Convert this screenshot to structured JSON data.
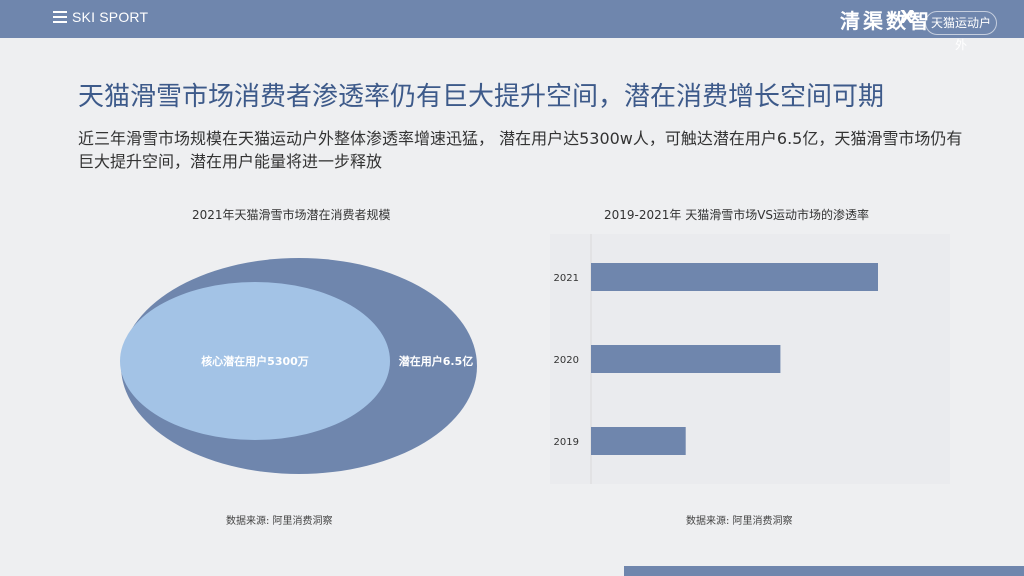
{
  "header": {
    "brand_left": "SKI SPORT",
    "brand_right": "清渠数智",
    "brand_x": "X",
    "brand_partner": "天猫运动户外"
  },
  "page": {
    "title": "天猫滑雪市场消费者渗透率仍有巨大提升空间，潜在消费增长空间可期",
    "subtitle": "近三年滑雪市场规模在天猫运动户外整体渗透率增速迅猛，  潜在用户达5300w人，可触达潜在用户6.5亿，天猫滑雪市场仍有巨大提升空间，潜在用户能量将进一步释放"
  },
  "left_chart": {
    "title": "2021年天猫滑雪市场潜在消费者规模",
    "inner_label": "核心潜在用户5300万",
    "outer_label": "潜在用户6.5亿",
    "source": "数据来源: 阿里消费洞察",
    "colors": {
      "outer": "#6f86ad",
      "inner": "#a3c3e6"
    }
  },
  "chart_data": {
    "type": "bar",
    "orientation": "horizontal",
    "title": "2019-2021年 天猫滑雪市场VS运动市场的渗透率",
    "categories": [
      "2021",
      "2020",
      "2019"
    ],
    "values": [
      100,
      66,
      33
    ],
    "xlabel": "",
    "ylabel": "",
    "xlim": [
      0,
      115
    ],
    "grid": false,
    "source": "数据来源: 阿里消费洞察",
    "bar_color": "#6f86ad"
  },
  "colors": {
    "accent": "#6f86ad",
    "title": "#3d5a8a",
    "background": "#eeeff1"
  }
}
